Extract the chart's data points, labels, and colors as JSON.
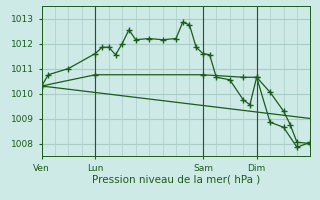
{
  "background_color": "#ceeae6",
  "grid_color": "#aaccc8",
  "line_color": "#1a5c1a",
  "xlabel": "Pression niveau de la mer( hPa )",
  "ylim": [
    1007.5,
    1013.5
  ],
  "yticks": [
    1008,
    1009,
    1010,
    1011,
    1012,
    1013
  ],
  "xtick_labels": [
    "Ven",
    "Lun",
    "Sam",
    "Dim"
  ],
  "xtick_positions": [
    0,
    16,
    48,
    64
  ],
  "xlim": [
    0,
    80
  ],
  "series1_x": [
    0,
    2,
    8,
    16,
    18,
    20,
    22,
    24,
    26,
    28,
    32,
    36,
    40,
    42,
    44,
    46,
    48,
    50,
    52,
    56,
    60,
    62,
    64,
    68,
    72,
    74,
    76,
    80
  ],
  "series1_y": [
    1010.3,
    1010.75,
    1011.0,
    1011.6,
    1011.85,
    1011.85,
    1011.55,
    1012.0,
    1012.55,
    1012.15,
    1012.2,
    1012.15,
    1012.2,
    1012.85,
    1012.75,
    1011.85,
    1011.6,
    1011.55,
    1010.65,
    1010.55,
    1009.75,
    1009.55,
    1010.65,
    1010.05,
    1009.3,
    1008.75,
    1008.05,
    1008.0
  ],
  "series2_x": [
    0,
    16,
    48,
    60,
    64,
    68,
    72,
    76,
    80
  ],
  "series2_y": [
    1010.3,
    1010.75,
    1010.75,
    1010.65,
    1010.65,
    1008.85,
    1008.65,
    1007.85,
    1008.05
  ],
  "series3_x": [
    0,
    80
  ],
  "series3_y": [
    1010.3,
    1009.0
  ],
  "vlines": [
    16,
    48,
    64
  ]
}
